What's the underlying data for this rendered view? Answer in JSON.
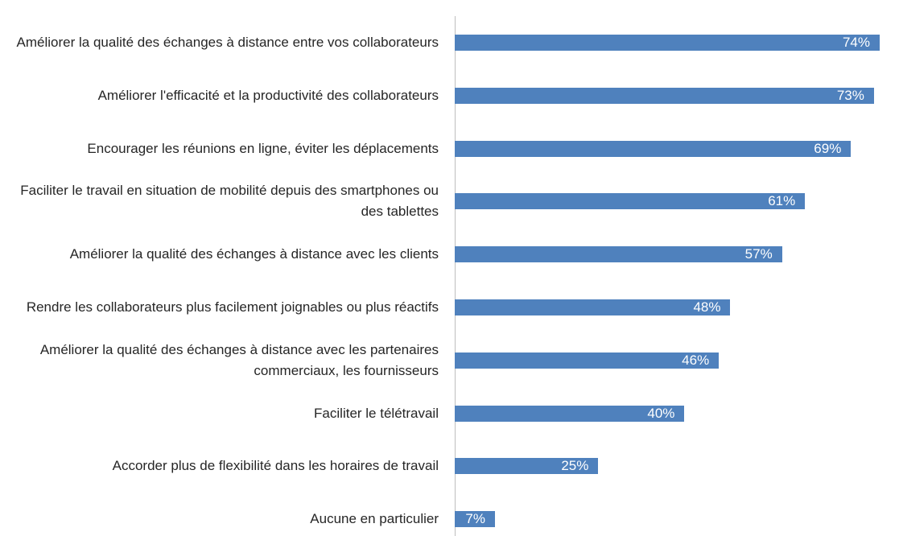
{
  "chart_data": {
    "type": "bar",
    "orientation": "horizontal",
    "color": "#4f81bd",
    "categories": [
      "Améliorer la qualité des échanges à distance entre vos collaborateurs",
      "Améliorer l'efficacité et la productivité des collaborateurs",
      "Encourager les réunions en ligne, éviter les déplacements",
      "Faciliter le travail en situation de mobilité depuis des smartphones ou des tablettes",
      "Améliorer la qualité des échanges à distance avec les clients",
      "Rendre les collaborateurs plus facilement joignables ou plus réactifs",
      "Améliorer la qualité des échanges à distance avec les partenaires commerciaux, les fournisseurs",
      "Faciliter le télétravail",
      "Accorder plus de flexibilité dans les horaires de travail",
      "Aucune en particulier"
    ],
    "values": [
      74,
      73,
      69,
      61,
      57,
      48,
      46,
      40,
      25,
      7
    ],
    "value_labels": [
      "74%",
      "73%",
      "69%",
      "61%",
      "57%",
      "48%",
      "46%",
      "40%",
      "25%",
      "7%"
    ]
  }
}
